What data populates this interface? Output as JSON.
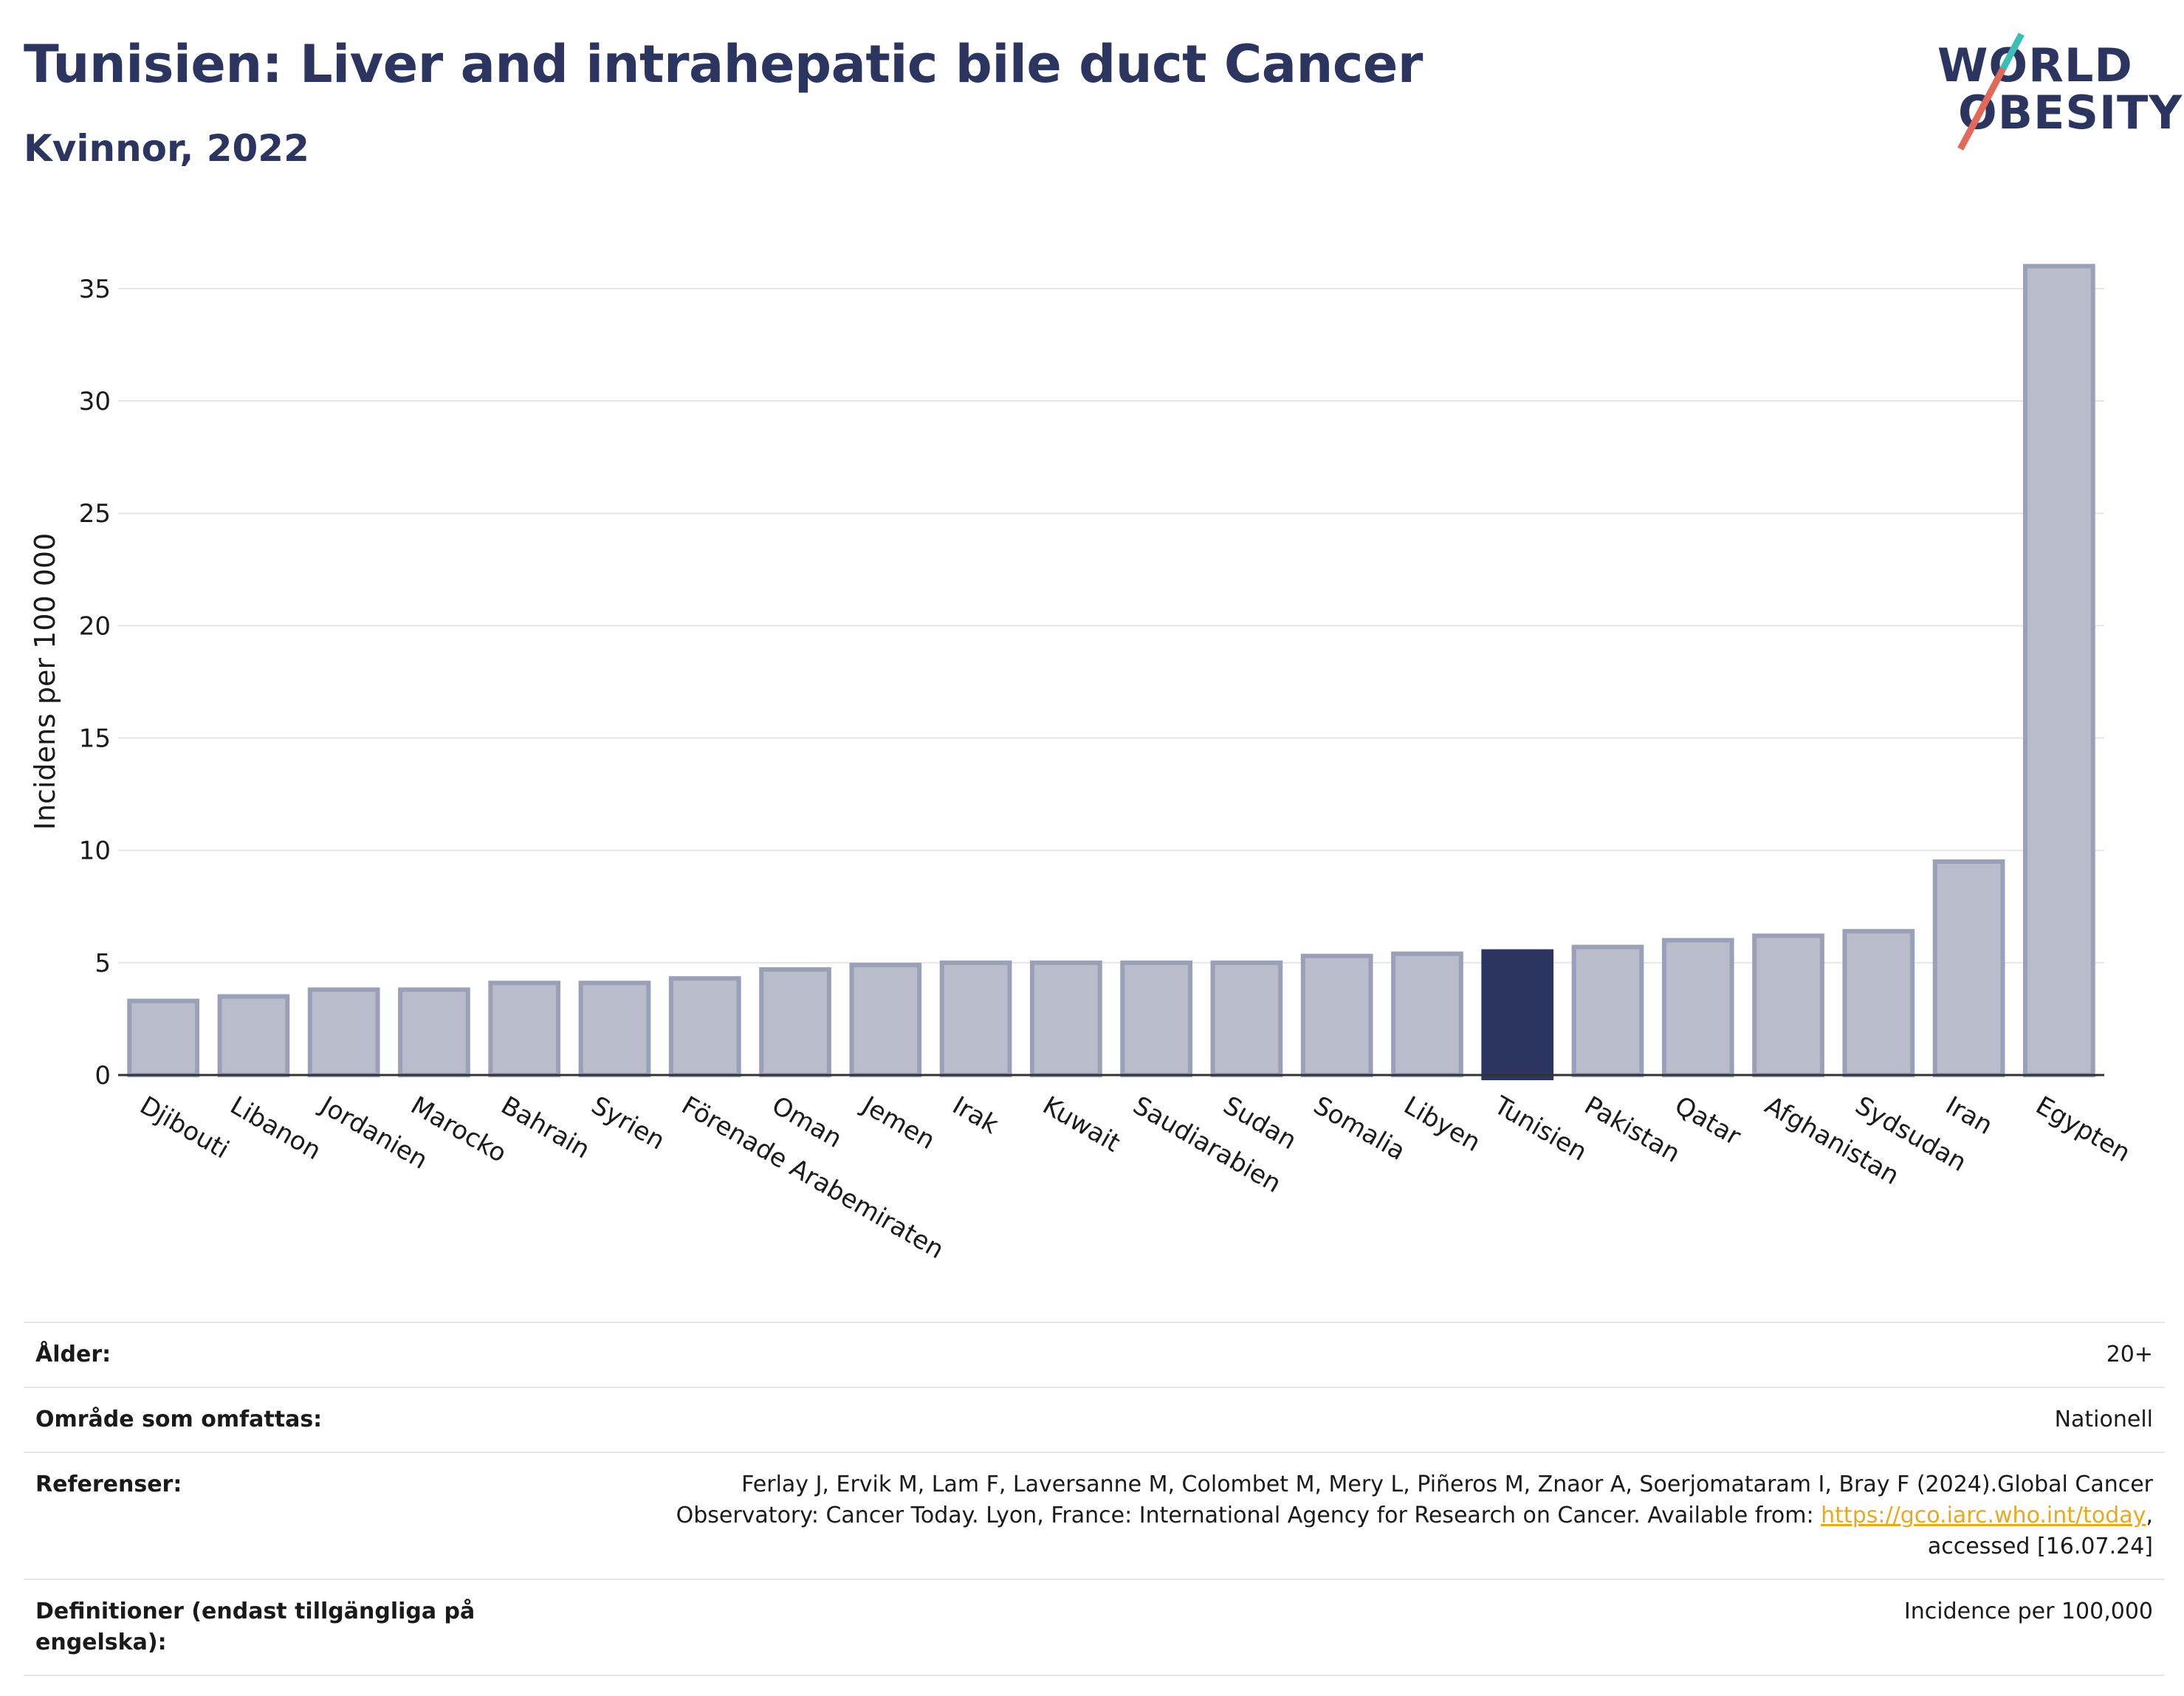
{
  "header": {
    "title": "Tunisien: Liver and intrahepatic bile duct Cancer",
    "subtitle": "Kvinnor, 2022"
  },
  "logo": {
    "line1": "WORLD",
    "line2": "OBESITY",
    "colors": {
      "text": "#2b3560",
      "slash_top": "#3bbfb5",
      "slash_bottom": "#e2685a"
    }
  },
  "chart_data": {
    "type": "bar",
    "ylabel": "Incidens per 100 000",
    "xlabel": "",
    "ylim": [
      0,
      37
    ],
    "yticks": [
      0,
      5,
      10,
      15,
      20,
      25,
      30,
      35
    ],
    "grid": true,
    "highlight": "Tunisien",
    "colors": {
      "bar": "#b9bccb",
      "bar_edge": "#9aa0b8",
      "highlight": "#2b3560",
      "grid": "#e6e6e6",
      "axis": "#333333"
    },
    "categories": [
      "Djibouti",
      "Libanon",
      "Jordanien",
      "Marocko",
      "Bahrain",
      "Syrien",
      "Förenade Arabemiraten",
      "Oman",
      "Jemen",
      "Irak",
      "Kuwait",
      "Saudiarabien",
      "Sudan",
      "Somalia",
      "Libyen",
      "Tunisien",
      "Pakistan",
      "Qatar",
      "Afghanistan",
      "Sydsudan",
      "Iran",
      "Egypten"
    ],
    "values": [
      3.3,
      3.5,
      3.8,
      3.8,
      4.1,
      4.1,
      4.3,
      4.7,
      4.9,
      5.0,
      5.0,
      5.0,
      5.0,
      5.3,
      5.4,
      5.5,
      5.7,
      6.0,
      6.2,
      6.4,
      9.5,
      36.0
    ]
  },
  "meta": {
    "age_label": "Ålder:",
    "age_value": "20+",
    "area_label": "Område som omfattas:",
    "area_value": "Nationell",
    "refs_label": "Referenser:",
    "refs_text_1": "Ferlay J, Ervik M, Lam F, Laversanne M, Colombet M, Mery L, Piñeros M, Znaor A, Soerjomataram I, Bray F (2024).Global Cancer",
    "refs_text_2": "Observatory: Cancer Today. Lyon, France: International Agency for Research on Cancer. Available from: ",
    "refs_link": "https://gco.iarc.who.int/today",
    "refs_text_3": ",",
    "refs_text_4": "accessed [16.07.24]",
    "defs_label": "Definitioner (endast tillgängliga på engelska):",
    "defs_value": "Incidence per 100,000"
  }
}
